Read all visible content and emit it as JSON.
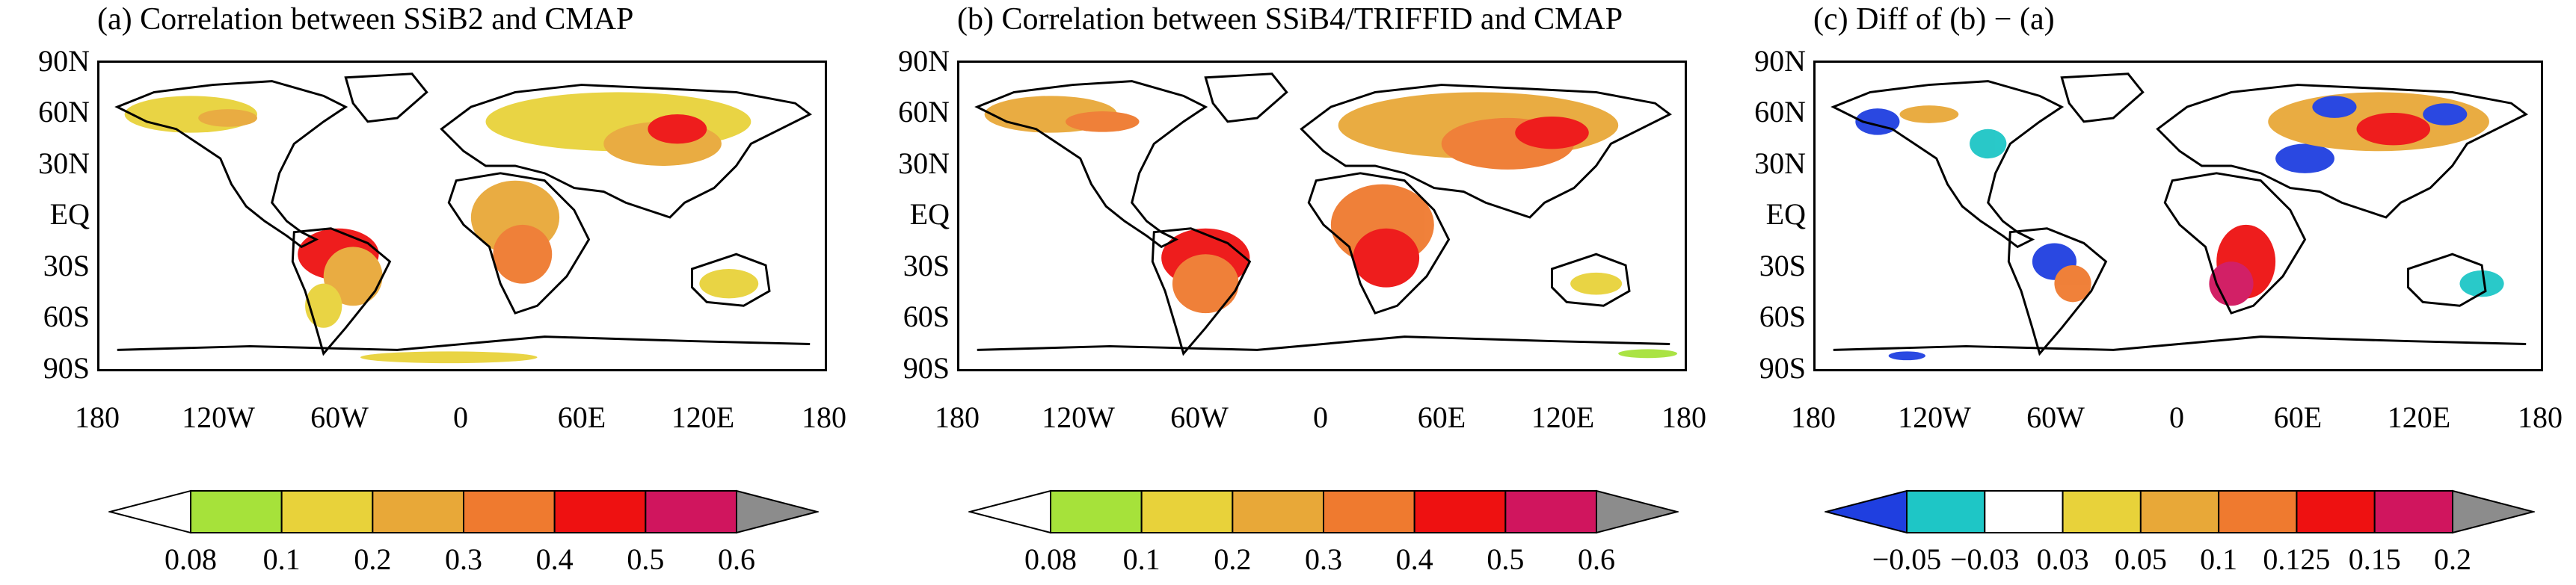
{
  "panels": [
    {
      "title": "(a) Correlation between SSiB2 and CMAP",
      "colorbar": {
        "labels": [
          "0.08",
          "0.1",
          "0.2",
          "0.3",
          "0.4",
          "0.5",
          "0.6"
        ],
        "colors": [
          "#ffffff",
          "#a6e23a",
          "#e8d23a",
          "#e8a838",
          "#ef7a2f",
          "#ee1111",
          "#d0155e",
          "#8c8c8c"
        ]
      }
    },
    {
      "title": "(b) Correlation between SSiB4/TRIFFID and CMAP",
      "colorbar": {
        "labels": [
          "0.08",
          "0.1",
          "0.2",
          "0.3",
          "0.4",
          "0.5",
          "0.6"
        ],
        "colors": [
          "#ffffff",
          "#a6e23a",
          "#e8d23a",
          "#e8a838",
          "#ef7a2f",
          "#ee1111",
          "#d0155e",
          "#8c8c8c"
        ]
      }
    },
    {
      "title": "(c) Diff of (b) − (a)",
      "colorbar": {
        "labels": [
          "−0.05",
          "−0.03",
          "0.03",
          "0.05",
          "0.1",
          "0.125",
          "0.15",
          "0.2"
        ],
        "colors": [
          "#1f3fe0",
          "#1ec6c6",
          "#ffffff",
          "#e8d23a",
          "#e8a838",
          "#ef7a2f",
          "#ee1111",
          "#d0155e",
          "#8c8c8c"
        ]
      }
    }
  ],
  "axes": {
    "y_ticks": [
      "90N",
      "60N",
      "30N",
      "EQ",
      "30S",
      "60S",
      "90S"
    ],
    "x_ticks": [
      "180",
      "120W",
      "60W",
      "0",
      "60E",
      "120E",
      "180"
    ]
  }
}
